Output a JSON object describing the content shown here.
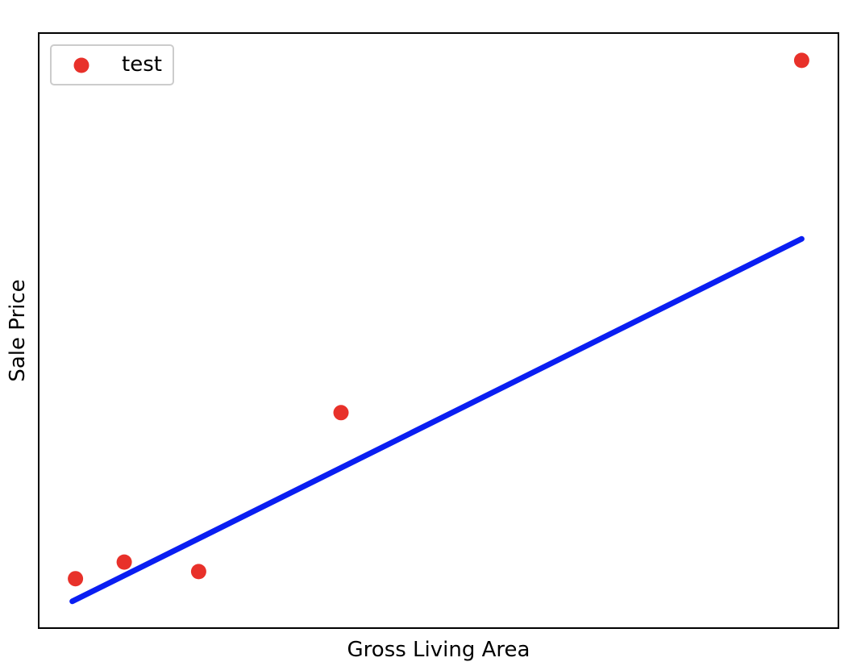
{
  "chart_data": {
    "type": "scatter",
    "title": "",
    "xlabel": "Gross Living Area",
    "ylabel": "Sale Price",
    "xlim": [
      0,
      1000
    ],
    "ylim": [
      0,
      1000
    ],
    "x_ticks_shown": false,
    "y_ticks_shown": false,
    "grid": false,
    "legend": {
      "position": "upper-left",
      "entries": [
        "test"
      ]
    },
    "series": [
      {
        "name": "test",
        "kind": "scatter",
        "color": "#e8312a",
        "x": [
          46,
          107,
          200,
          378,
          954
        ],
        "y": [
          83,
          111,
          95,
          362,
          954
        ]
      },
      {
        "kind": "line",
        "color": "#0a1ef2",
        "x": [
          42,
          954
        ],
        "y": [
          45,
          654
        ]
      }
    ]
  }
}
